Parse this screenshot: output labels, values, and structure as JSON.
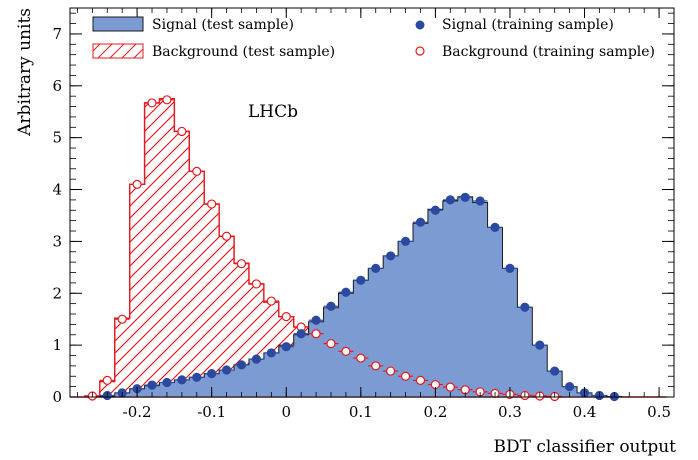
{
  "chart_data": {
    "type": "histogram",
    "xlabel": "BDT classifier output",
    "ylabel": "Arbitrary units",
    "xlim": [
      -0.29,
      0.52
    ],
    "ylim": [
      0,
      7.5
    ],
    "xticks": [
      -0.2,
      -0.1,
      0,
      0.1,
      0.2,
      0.3,
      0.4,
      0.5
    ],
    "xtick_labels": [
      "-0.2",
      "-0.1",
      "0",
      "0.1",
      "0.2",
      "0.3",
      "0.4",
      "0.5"
    ],
    "yticks": [
      0,
      1,
      2,
      3,
      4,
      5,
      6,
      7
    ],
    "ytick_labels": [
      "0",
      "1",
      "2",
      "3",
      "4",
      "5",
      "6",
      "7"
    ],
    "annotation": "LHCb",
    "legend_position": "top",
    "bins": {
      "edges_start": -0.29,
      "width": 0.02,
      "centers": [
        -0.28,
        -0.26,
        -0.24,
        -0.22,
        -0.2,
        -0.18,
        -0.16,
        -0.14,
        -0.12,
        -0.1,
        -0.08,
        -0.06,
        -0.04,
        -0.02,
        0.0,
        0.02,
        0.04,
        0.06,
        0.08,
        0.1,
        0.12,
        0.14,
        0.16,
        0.18,
        0.2,
        0.22,
        0.24,
        0.26,
        0.28,
        0.3,
        0.32,
        0.34,
        0.36,
        0.38,
        0.4,
        0.42,
        0.44,
        0.46,
        0.48,
        0.5
      ]
    },
    "series": [
      {
        "name": "Signal (test sample)",
        "kind": "filled-histogram",
        "color": "#7b9bd2",
        "edge_color": "#1a1a1a",
        "values": [
          0,
          0,
          0.02,
          0.08,
          0.16,
          0.22,
          0.28,
          0.33,
          0.38,
          0.45,
          0.52,
          0.62,
          0.73,
          0.85,
          1.0,
          1.2,
          1.45,
          1.72,
          2.0,
          2.25,
          2.48,
          2.72,
          3.0,
          3.35,
          3.62,
          3.78,
          3.86,
          3.75,
          3.27,
          2.48,
          1.73,
          1.0,
          0.5,
          0.2,
          0.08,
          0.03,
          0.01,
          0,
          0,
          0
        ]
      },
      {
        "name": "Background (test sample)",
        "kind": "hatched-histogram",
        "color": "#e8191e",
        "values": [
          0,
          0.02,
          0.3,
          1.52,
          4.1,
          5.67,
          5.75,
          5.12,
          4.35,
          3.72,
          3.1,
          2.58,
          2.18,
          1.83,
          1.55,
          1.35,
          1.2,
          1.03,
          0.88,
          0.75,
          0.62,
          0.5,
          0.4,
          0.32,
          0.24,
          0.19,
          0.14,
          0.1,
          0.07,
          0.05,
          0.03,
          0.02,
          0.01,
          0,
          0,
          0,
          0,
          0,
          0,
          0
        ]
      },
      {
        "name": "Signal (training sample)",
        "kind": "filled-markers",
        "color": "#2b4a9f",
        "values": [
          0,
          0,
          0.03,
          0.08,
          0.16,
          0.23,
          0.28,
          0.33,
          0.38,
          0.45,
          0.52,
          0.62,
          0.73,
          0.85,
          0.97,
          1.22,
          1.48,
          1.75,
          2.02,
          2.25,
          2.48,
          2.72,
          3.0,
          3.37,
          3.6,
          3.8,
          3.85,
          3.78,
          3.27,
          2.48,
          1.73,
          1.0,
          0.5,
          0.2,
          0.08,
          0.03,
          0.01,
          0,
          0,
          0
        ]
      },
      {
        "name": "Background (training sample)",
        "kind": "open-markers",
        "color": "#e8191e",
        "values": [
          0.0,
          0.02,
          0.32,
          1.5,
          4.1,
          5.67,
          5.73,
          5.12,
          4.35,
          3.72,
          3.1,
          2.57,
          2.18,
          1.85,
          1.55,
          1.35,
          1.22,
          1.03,
          0.88,
          0.75,
          0.6,
          0.5,
          0.4,
          0.32,
          0.24,
          0.19,
          0.14,
          0.1,
          0.07,
          0.05,
          0.03,
          0.02,
          0.01,
          0.0,
          0.0,
          0.0,
          0.0,
          0.0,
          0.0,
          0.0
        ]
      }
    ]
  }
}
